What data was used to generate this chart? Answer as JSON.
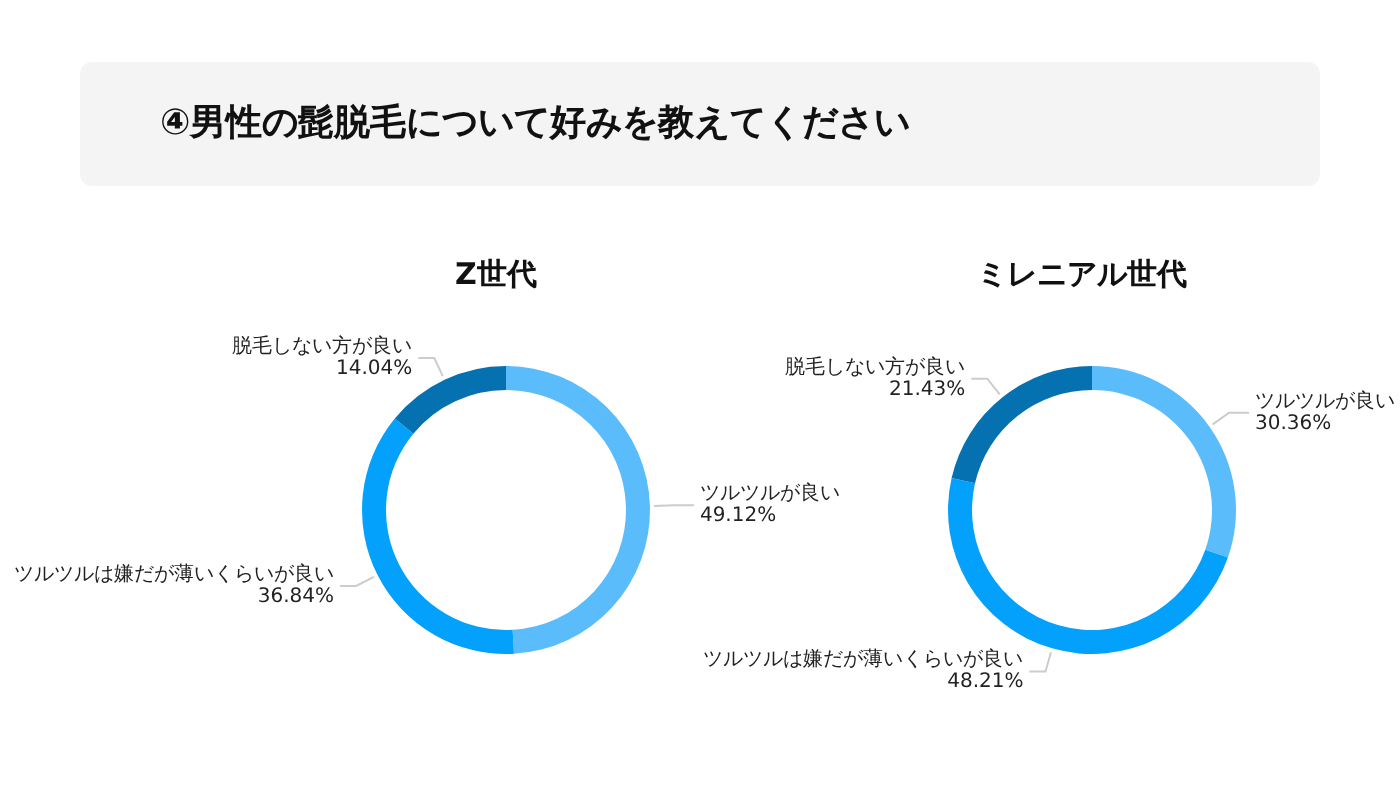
{
  "chart_data": [
    {
      "type": "other",
      "title": "④男性の髭脱毛について好みを教えてください"
    },
    {
      "type": "donut",
      "title": "Z世代",
      "categories": [
        "ツルツルが良い",
        "ツルツルは嫌だが薄いくらいが良い",
        "脱毛しない方が良い"
      ],
      "values": [
        49.12,
        36.84,
        14.04
      ],
      "value_labels": [
        "49.12%",
        "36.84%",
        "14.04%"
      ],
      "colors": [
        "#5bbcfb",
        "#03a1fb",
        "#0571b0"
      ]
    },
    {
      "type": "donut",
      "title": "ミレニアル世代",
      "categories": [
        "ツルツルが良い",
        "ツルツルは嫌だが薄いくらいが良い",
        "脱毛しない方が良い"
      ],
      "values": [
        30.36,
        48.21,
        21.43
      ],
      "value_labels": [
        "30.36%",
        "48.21%",
        "21.43%"
      ],
      "colors": [
        "#5bbcfb",
        "#03a1fb",
        "#0571b0"
      ]
    }
  ]
}
